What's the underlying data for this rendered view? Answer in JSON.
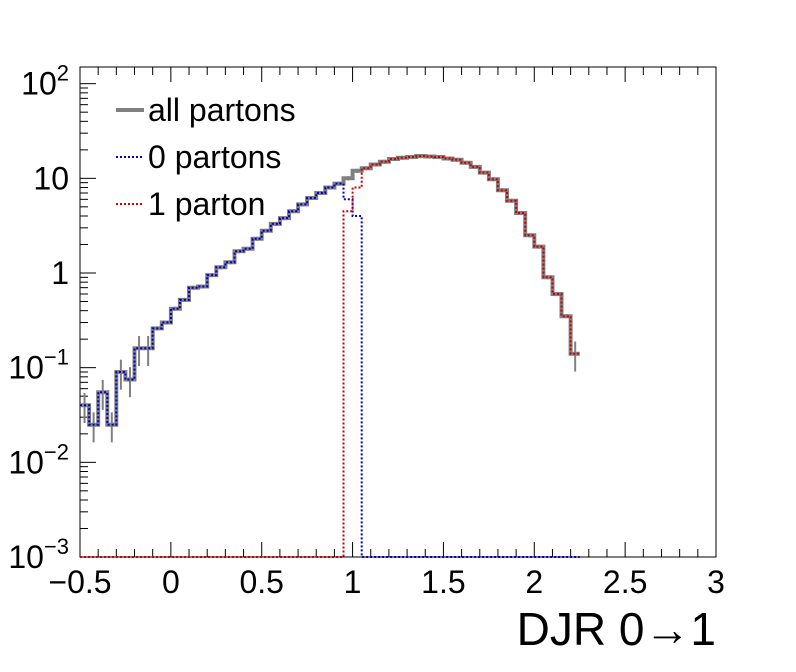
{
  "chart_data": {
    "type": "line",
    "style": "step-histogram",
    "xlabel": "DJR 0→1",
    "ylabel": "",
    "xlim": [
      -0.5,
      3.0
    ],
    "ylim": [
      0.001,
      150
    ],
    "yscale": "log",
    "x_ticks": [
      {
        "v": -0.5,
        "label": "−0.5"
      },
      {
        "v": 0,
        "label": "0"
      },
      {
        "v": 0.5,
        "label": "0.5"
      },
      {
        "v": 1,
        "label": "1"
      },
      {
        "v": 1.5,
        "label": "1.5"
      },
      {
        "v": 2,
        "label": "2"
      },
      {
        "v": 2.5,
        "label": "2.5"
      },
      {
        "v": 3,
        "label": "3"
      }
    ],
    "y_ticks": [
      {
        "v": 0.001,
        "base": "10",
        "exp": "−3"
      },
      {
        "v": 0.01,
        "base": "10",
        "exp": "−2"
      },
      {
        "v": 0.1,
        "base": "10",
        "exp": "−1"
      },
      {
        "v": 1,
        "base": "1",
        "exp": ""
      },
      {
        "v": 10,
        "base": "10",
        "exp": ""
      },
      {
        "v": 100,
        "base": "10",
        "exp": "2"
      }
    ],
    "legend_position": "top-left",
    "grid": false,
    "bin_width": 0.05,
    "x_start": -0.5,
    "series": [
      {
        "name": "all partons",
        "color": "#808080",
        "line": "solid",
        "values": [
          0.04,
          0.025,
          0.055,
          0.025,
          0.09,
          0.075,
          0.16,
          0.16,
          0.26,
          0.3,
          0.42,
          0.52,
          0.7,
          0.72,
          0.95,
          1.15,
          1.3,
          1.7,
          1.8,
          2.3,
          2.8,
          3.3,
          3.8,
          4.5,
          5.3,
          6.2,
          7.0,
          8.0,
          8.8,
          10.0,
          12.0,
          12.8,
          14.0,
          15.0,
          16.0,
          16.5,
          16.8,
          17.2,
          17.0,
          16.8,
          16.2,
          15.7,
          14.6,
          13.2,
          11.5,
          9.8,
          7.5,
          5.8,
          4.3,
          2.5,
          1.9,
          0.9,
          0.6,
          0.35,
          0.14
        ]
      },
      {
        "name": "0 partons",
        "color": "#0000cc",
        "line": "dotted",
        "values": [
          0.04,
          0.025,
          0.055,
          0.025,
          0.09,
          0.075,
          0.16,
          0.16,
          0.26,
          0.3,
          0.42,
          0.52,
          0.7,
          0.72,
          0.95,
          1.15,
          1.3,
          1.7,
          1.8,
          2.3,
          2.8,
          3.3,
          3.8,
          4.5,
          5.3,
          6.2,
          7.0,
          8.0,
          8.8,
          6.0,
          4.0,
          0.001,
          0.001,
          0.001,
          0.001,
          0.001,
          0.001,
          0.001,
          0.001,
          0.001,
          0.001,
          0.001,
          0.001,
          0.001,
          0.001,
          0.001,
          0.001,
          0.001,
          0.001,
          0.001,
          0.001,
          0.001,
          0.001,
          0.001,
          0.001
        ]
      },
      {
        "name": "1 parton",
        "color": "#cc0000",
        "line": "dotted",
        "values": [
          0.001,
          0.001,
          0.001,
          0.001,
          0.001,
          0.001,
          0.001,
          0.001,
          0.001,
          0.001,
          0.001,
          0.001,
          0.001,
          0.001,
          0.001,
          0.001,
          0.001,
          0.001,
          0.001,
          0.001,
          0.001,
          0.001,
          0.001,
          0.001,
          0.001,
          0.001,
          0.001,
          0.001,
          0.001,
          4.5,
          8.0,
          12.8,
          14.0,
          15.0,
          16.0,
          16.5,
          16.8,
          17.2,
          17.0,
          16.8,
          16.2,
          15.7,
          14.6,
          13.2,
          11.5,
          9.8,
          7.5,
          5.8,
          4.3,
          2.5,
          1.9,
          0.9,
          0.6,
          0.35,
          0.14
        ]
      }
    ]
  }
}
